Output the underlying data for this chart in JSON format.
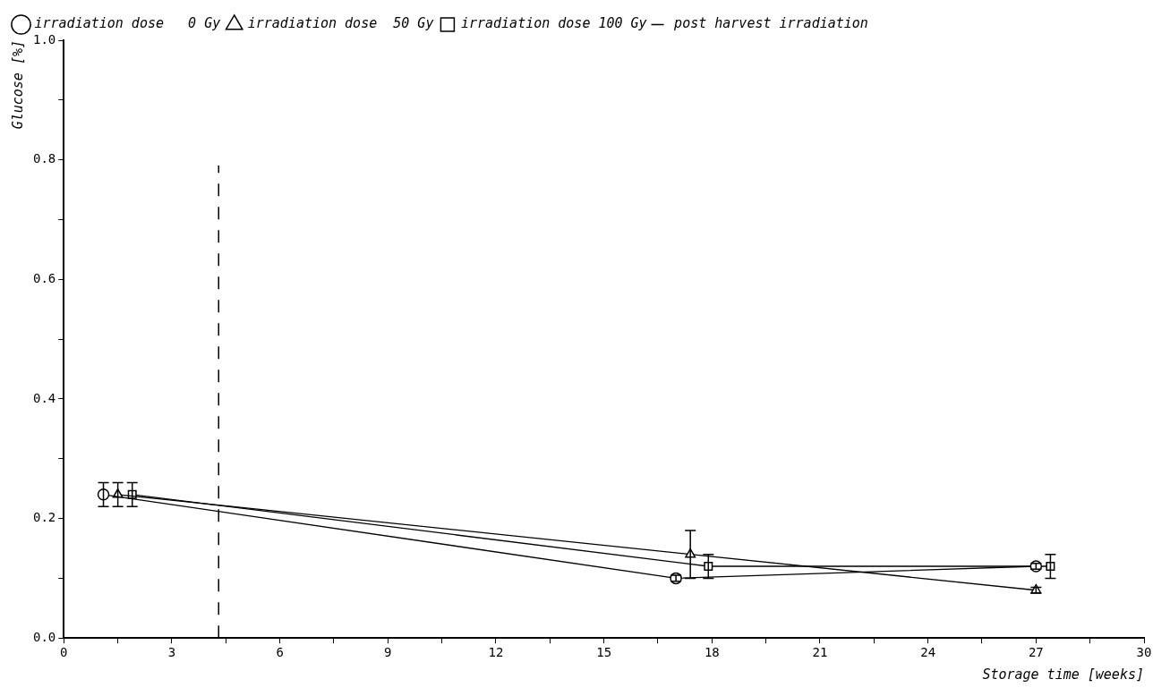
{
  "chart_data": {
    "type": "line",
    "xlabel": "Storage time [weeks]",
    "ylabel": "Glucose [%]",
    "series": [
      {
        "name": "irradiation dose   0 Gy",
        "color": "#000000",
        "marker": "circle",
        "x": [
          1.1,
          17.0,
          27.0
        ],
        "values": [
          0.24,
          0.1,
          0.12
        ],
        "errors": [
          0.02,
          0.005,
          0.005
        ]
      },
      {
        "name": "irradiation dose  50 Gy",
        "color": "#000000",
        "marker": "triangle",
        "x": [
          1.5,
          17.4,
          27.0
        ],
        "values": [
          0.24,
          0.14,
          0.08
        ],
        "errors": [
          0.02,
          0.04,
          0.005
        ]
      },
      {
        "name": "irradiation dose 100 Gy",
        "color": "#000000",
        "marker": "square",
        "x": [
          1.9,
          17.9,
          27.4
        ],
        "values": [
          0.24,
          0.12,
          0.12
        ],
        "errors": [
          0.02,
          0.02,
          0.02
        ]
      }
    ],
    "ref_lines": [
      {
        "axis": "x",
        "value": 4.3,
        "label": "post harvest irradiation",
        "color": "#000000",
        "line_style": "dashed"
      }
    ],
    "xlim": [
      0,
      30
    ],
    "xticks": [
      0,
      {
        "value": 1.5,
        "label": null
      },
      3,
      {
        "value": 4.5,
        "label": null
      },
      6,
      {
        "value": 7.5,
        "label": null
      },
      9,
      {
        "value": 10.5,
        "label": null
      },
      12,
      {
        "value": 13.5,
        "label": null
      },
      15,
      {
        "value": 16.5,
        "label": null
      },
      18,
      {
        "value": 19.5,
        "label": null
      },
      21,
      {
        "value": 22.5,
        "label": null
      },
      24,
      {
        "value": 25.5,
        "label": null
      },
      27,
      {
        "value": 28.5,
        "label": null
      },
      30
    ],
    "ylim": [
      0,
      1.0
    ],
    "yticks": [
      {
        "value": 0,
        "label": "0.0"
      },
      {
        "value": 0.1,
        "label": null
      },
      0.2,
      {
        "value": 0.3,
        "label": null
      },
      0.4,
      {
        "value": 0.5,
        "label": null
      },
      0.6,
      {
        "value": 0.7,
        "label": null
      },
      0.8,
      {
        "value": 0.9,
        "label": null
      },
      {
        "value": 1.0,
        "label": "1.0"
      }
    ],
    "grid": false,
    "legend": "top left",
    "line_style": "solid"
  }
}
